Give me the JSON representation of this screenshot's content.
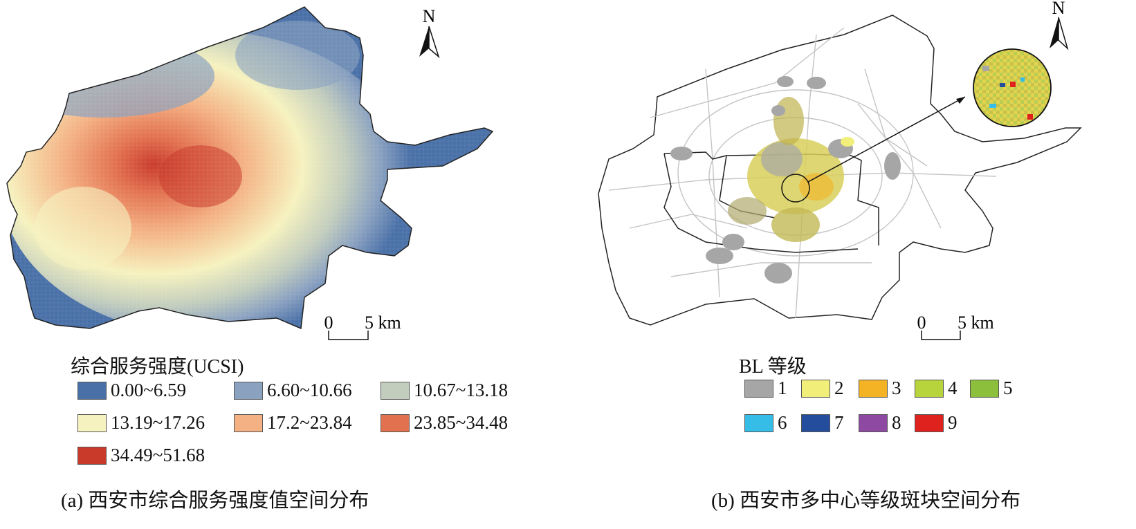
{
  "panel_a": {
    "north_label": "N",
    "scale": {
      "start": "0",
      "end": "5 km"
    },
    "legend_title": "综合服务强度(UCSI)",
    "legend": [
      {
        "label": "0.00~6.59",
        "color": "#4a70a8"
      },
      {
        "label": "6.60~10.66",
        "color": "#8aa1c0"
      },
      {
        "label": "10.67~13.18",
        "color": "#c2cdbd"
      },
      {
        "label": "13.19~17.26",
        "color": "#f6f2bf"
      },
      {
        "label": "17.2~23.84",
        "color": "#f4b183"
      },
      {
        "label": "23.85~34.48",
        "color": "#e2714f"
      },
      {
        "label": "34.49~51.68",
        "color": "#c93a2b"
      }
    ],
    "caption": "(a) 西安市综合服务强度值空间分布"
  },
  "panel_b": {
    "north_label": "N",
    "scale": {
      "start": "0",
      "end": "5 km"
    },
    "legend_title": "BL 等级",
    "legend": [
      {
        "label": "1",
        "color": "#a6a6a6"
      },
      {
        "label": "2",
        "color": "#f2ee7a"
      },
      {
        "label": "3",
        "color": "#f3b325"
      },
      {
        "label": "4",
        "color": "#b8d43c"
      },
      {
        "label": "5",
        "color": "#8cc03c"
      },
      {
        "label": "6",
        "color": "#35bde8"
      },
      {
        "label": "7",
        "color": "#244d9e"
      },
      {
        "label": "8",
        "color": "#8e4aa3"
      },
      {
        "label": "9",
        "color": "#e0221f"
      }
    ],
    "caption": "(b) 西安市多中心等级斑块空间分布"
  }
}
